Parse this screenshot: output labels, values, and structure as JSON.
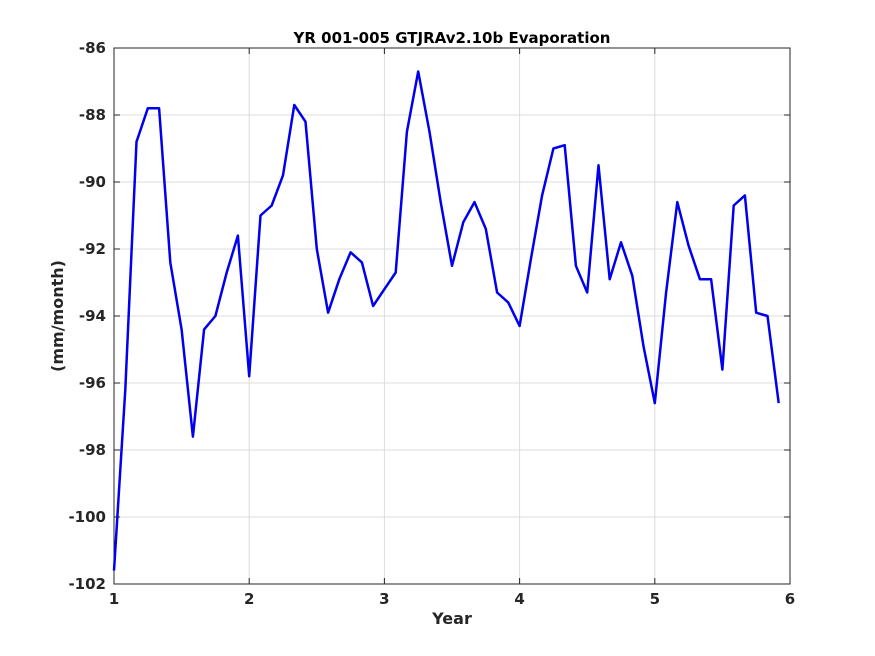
{
  "chart_data": {
    "type": "line",
    "title": "YR 001-005 GTJRAv2.10b Evaporation",
    "xlabel": "Year",
    "ylabel": "(mm/month)",
    "xlim": [
      1,
      6
    ],
    "ylim": [
      -102,
      -86
    ],
    "xticks": [
      1,
      2,
      3,
      4,
      5,
      6
    ],
    "yticks": [
      -102,
      -100,
      -98,
      -96,
      -94,
      -92,
      -90,
      -88,
      -86
    ],
    "grid": true,
    "series": [
      {
        "color": "#0000ee",
        "x": [
          1.0,
          1.0833,
          1.1667,
          1.25,
          1.3333,
          1.4167,
          1.5,
          1.5833,
          1.6667,
          1.75,
          1.8333,
          1.9167,
          2.0,
          2.0833,
          2.1667,
          2.25,
          2.3333,
          2.4167,
          2.5,
          2.5833,
          2.6667,
          2.75,
          2.8333,
          2.9167,
          3.0,
          3.0833,
          3.1667,
          3.25,
          3.3333,
          3.4167,
          3.5,
          3.5833,
          3.6667,
          3.75,
          3.8333,
          3.9167,
          4.0,
          4.0833,
          4.1667,
          4.25,
          4.3333,
          4.4167,
          4.5,
          4.5833,
          4.6667,
          4.75,
          4.8333,
          4.9167,
          5.0,
          5.0833,
          5.1667,
          5.25,
          5.3333,
          5.4167,
          5.5,
          5.5833,
          5.6667,
          5.75,
          5.8333,
          5.9167
        ],
        "values": [
          -101.6,
          -96.2,
          -88.8,
          -87.8,
          -87.8,
          -92.4,
          -94.4,
          -97.6,
          -94.4,
          -94.0,
          -92.7,
          -91.6,
          -95.8,
          -91.0,
          -90.7,
          -89.8,
          -87.7,
          -88.2,
          -92.0,
          -93.9,
          -92.9,
          -92.1,
          -92.4,
          -93.7,
          -93.2,
          -92.7,
          -88.5,
          -86.7,
          -88.5,
          -90.6,
          -92.5,
          -91.2,
          -90.6,
          -91.4,
          -93.3,
          -93.6,
          -94.3,
          -92.3,
          -90.4,
          -89.0,
          -88.9,
          -92.5,
          -93.3,
          -89.5,
          -92.9,
          -91.8,
          -92.8,
          -94.9,
          -96.6,
          -93.3,
          -90.6,
          -91.9,
          -92.9,
          -92.9,
          -95.6,
          -90.7,
          -90.4,
          -93.9,
          -94.0,
          -96.6
        ]
      }
    ]
  }
}
